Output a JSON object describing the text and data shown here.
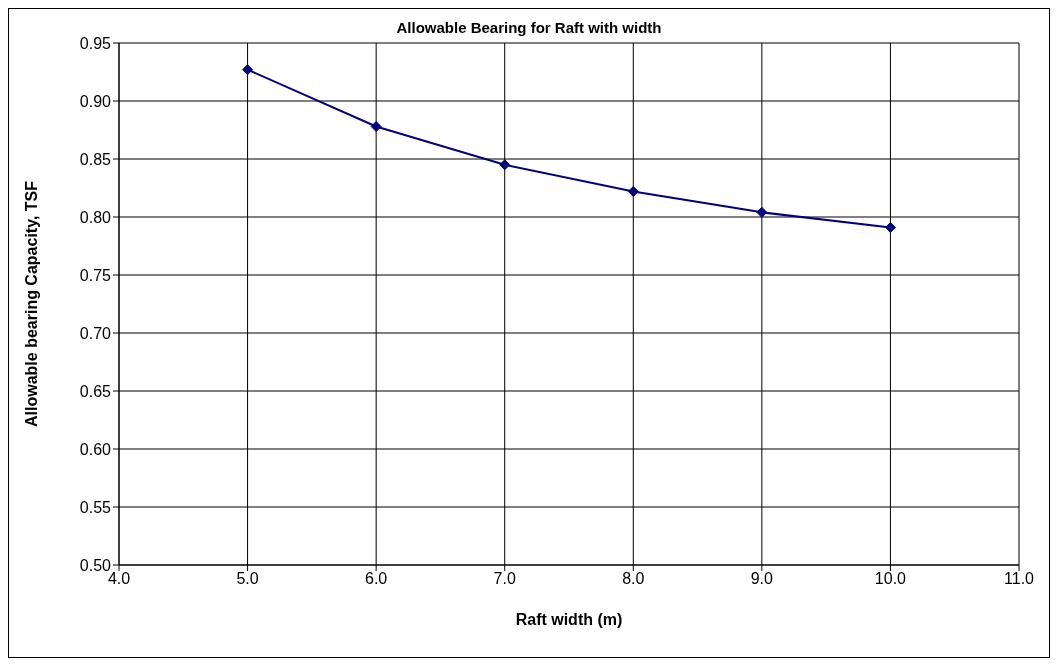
{
  "chart_data": {
    "type": "line",
    "title": "Allowable Bearing for Raft with width",
    "xlabel": "Raft width (m)",
    "ylabel": "Allowable bearing Capacity, TSF",
    "x": [
      5.0,
      6.0,
      7.0,
      8.0,
      9.0,
      10.0
    ],
    "series": [
      {
        "color": "#000080",
        "values": [
          0.927,
          0.878,
          0.845,
          0.822,
          0.804,
          0.791
        ]
      }
    ],
    "xlim": [
      4.0,
      11.0
    ],
    "xticks": [
      {
        "value": 4,
        "label": "4.0"
      },
      {
        "value": 5,
        "label": "5.0"
      },
      {
        "value": 6,
        "label": "6.0"
      },
      {
        "value": 7,
        "label": "7.0"
      },
      {
        "value": 8,
        "label": "8.0"
      },
      {
        "value": 9,
        "label": "9.0"
      },
      {
        "value": 10,
        "label": "10.0"
      },
      {
        "value": 11,
        "label": "11.0"
      }
    ],
    "ylim": [
      0.5,
      0.95
    ],
    "yticks": [
      {
        "value": 0.5,
        "label": "0.50"
      },
      {
        "value": 0.55,
        "label": "0.55"
      },
      {
        "value": 0.6,
        "label": "0.60"
      },
      {
        "value": 0.65,
        "label": "0.65"
      },
      {
        "value": 0.7,
        "label": "0.70"
      },
      {
        "value": 0.75,
        "label": "0.75"
      },
      {
        "value": 0.8,
        "label": "0.80"
      },
      {
        "value": 0.85,
        "label": "0.85"
      },
      {
        "value": 0.9,
        "label": "0.90"
      },
      {
        "value": 0.95,
        "label": "0.95"
      }
    ],
    "grid": true,
    "marker": "diamond",
    "line_style": "solid",
    "legend": false
  }
}
